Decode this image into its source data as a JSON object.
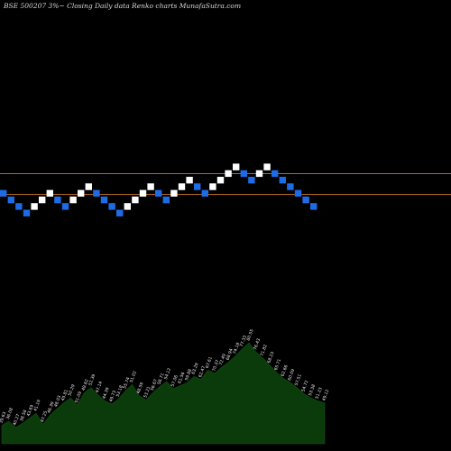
{
  "header": {
    "title": "BSE 500207 3%~   Closing Daily data  Renko  charts MunafaSutra.com"
  },
  "colors": {
    "background": "#000000",
    "up_brick": "#ffffff",
    "down_brick": "#1e6be6",
    "reference_line": "#b5651d",
    "volume_fill": "#0b3a0b",
    "volume_stroke": "#145214"
  },
  "chart_data": {
    "type": "renko",
    "brick_size_percent": 3,
    "reference_levels": [
      "upper",
      "lower"
    ],
    "bricks": [
      {
        "d": "down",
        "level": 0
      },
      {
        "d": "down",
        "level": -1
      },
      {
        "d": "down",
        "level": -2
      },
      {
        "d": "down",
        "level": -3
      },
      {
        "d": "up",
        "level": -2
      },
      {
        "d": "up",
        "level": -1
      },
      {
        "d": "up",
        "level": 0
      },
      {
        "d": "down",
        "level": -1
      },
      {
        "d": "down",
        "level": -2
      },
      {
        "d": "up",
        "level": -1
      },
      {
        "d": "up",
        "level": 0
      },
      {
        "d": "up",
        "level": 1
      },
      {
        "d": "down",
        "level": 0
      },
      {
        "d": "down",
        "level": -1
      },
      {
        "d": "down",
        "level": -2
      },
      {
        "d": "down",
        "level": -3
      },
      {
        "d": "up",
        "level": -2
      },
      {
        "d": "up",
        "level": -1
      },
      {
        "d": "up",
        "level": 0
      },
      {
        "d": "up",
        "level": 1
      },
      {
        "d": "down",
        "level": 0
      },
      {
        "d": "down",
        "level": -1
      },
      {
        "d": "up",
        "level": 0
      },
      {
        "d": "up",
        "level": 1
      },
      {
        "d": "up",
        "level": 2
      },
      {
        "d": "down",
        "level": 1
      },
      {
        "d": "down",
        "level": 0
      },
      {
        "d": "up",
        "level": 1
      },
      {
        "d": "up",
        "level": 2
      },
      {
        "d": "up",
        "level": 3
      },
      {
        "d": "up",
        "level": 4
      },
      {
        "d": "down",
        "level": 3
      },
      {
        "d": "down",
        "level": 2
      },
      {
        "d": "up",
        "level": 3
      },
      {
        "d": "up",
        "level": 4
      },
      {
        "d": "down",
        "level": 3
      },
      {
        "d": "down",
        "level": 2
      },
      {
        "d": "down",
        "level": 1
      },
      {
        "d": "down",
        "level": 0
      },
      {
        "d": "down",
        "level": -1
      },
      {
        "d": "down",
        "level": -2
      }
    ],
    "volume": {
      "values": [
        18,
        22,
        16,
        20,
        25,
        30,
        19,
        28,
        34,
        40,
        45,
        38,
        50,
        55,
        48,
        42,
        39,
        44,
        52,
        58,
        47,
        43,
        50,
        56,
        61,
        54,
        57,
        60,
        66,
        63,
        72,
        69,
        75,
        80,
        86,
        93,
        99,
        90,
        84,
        77,
        70,
        64,
        60,
        55,
        49,
        45,
        42,
        40
      ],
      "labels": [
        "39.63",
        "36.08",
        "40.27",
        "38.58",
        "43.69",
        "41.19",
        "47.25",
        "46.39",
        "48.03",
        "45.81",
        "50.29",
        "51.09",
        "49.62",
        "52.39",
        "47.14",
        "44.39",
        "49.73",
        "53.18",
        "55.74",
        "51.02",
        "48.59",
        "53.21",
        "56.67",
        "58.71",
        "54.12",
        "57.06",
        "61.56",
        "59.88",
        "63.29",
        "62.47",
        "67.61",
        "70.37",
        "72.49",
        "68.94",
        "74.18",
        "77.33",
        "80.55",
        "76.43",
        "71.82",
        "68.23",
        "65.71",
        "62.66",
        "60.09",
        "57.51",
        "54.72",
        "53.38",
        "51.23",
        "49.12"
      ]
    }
  }
}
